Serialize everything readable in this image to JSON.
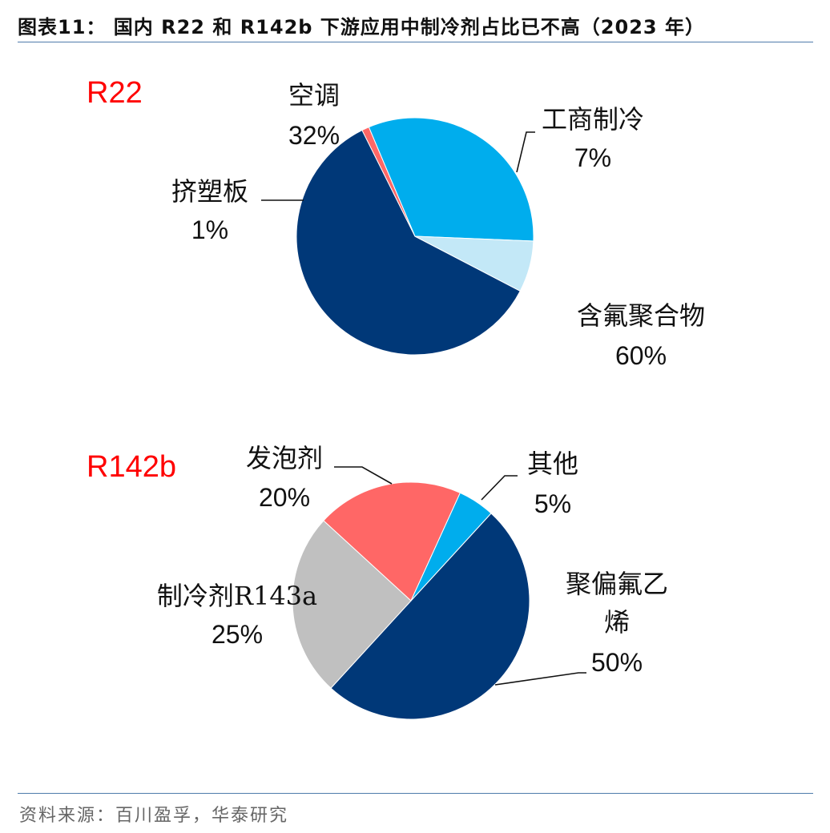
{
  "title": "图表11： 国内 R22 和 R142b 下游应用中制冷剂占比已不高（2023 年）",
  "source": "资料来源：百川盈孚，华泰研究",
  "chart_data": [
    {
      "type": "pie",
      "title": "R22",
      "slices": [
        {
          "label_lines": [
            "含氟聚合物"
          ],
          "pct_label": "60%",
          "value": 60,
          "color": "#003878"
        },
        {
          "label_lines": [
            "挤塑板"
          ],
          "pct_label": "1%",
          "value": 1,
          "color": "#ff6766"
        },
        {
          "label_lines": [
            "空调"
          ],
          "pct_label": "32%",
          "value": 32,
          "color": "#00aded"
        },
        {
          "label_lines": [
            "工商制冷"
          ],
          "pct_label": "7%",
          "value": 7,
          "color": "#c3e8f7"
        }
      ]
    },
    {
      "type": "pie",
      "title": "R142b",
      "slices": [
        {
          "label_lines": [
            "聚偏氟乙",
            "烯"
          ],
          "pct_label": "50%",
          "value": 50,
          "color": "#003878"
        },
        {
          "label_lines": [
            "制冷剂R143a"
          ],
          "pct_label": "25%",
          "value": 25,
          "color": "#c0c0c0"
        },
        {
          "label_lines": [
            "发泡剂"
          ],
          "pct_label": "20%",
          "value": 20,
          "color": "#ff6766"
        },
        {
          "label_lines": [
            "其他"
          ],
          "pct_label": "5%",
          "value": 5,
          "color": "#00aded"
        }
      ]
    }
  ]
}
